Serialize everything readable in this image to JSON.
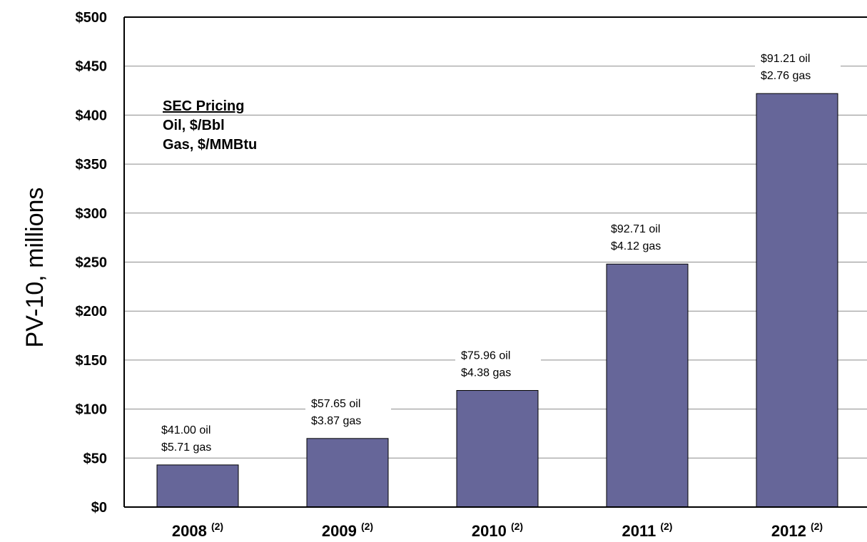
{
  "chart_data": {
    "type": "bar",
    "categories": [
      "2008",
      "2009",
      "2010",
      "2011",
      "2012"
    ],
    "category_notes": [
      "(2)",
      "(2)",
      "(2)",
      "(2)",
      "(2)"
    ],
    "values": [
      43,
      70,
      119,
      248,
      422
    ],
    "ylabel": "PV-10, millions",
    "ylim": [
      0,
      500
    ],
    "yticks": [
      0,
      50,
      100,
      150,
      200,
      250,
      300,
      350,
      400,
      450,
      500
    ],
    "ytick_labels": [
      "$0",
      "$50",
      "$100",
      "$150",
      "$200",
      "$250",
      "$300",
      "$350",
      "$400",
      "$450",
      "$500"
    ],
    "grid": true,
    "bar_color": "#666699",
    "data_labels": [
      [
        "$41.00 oil",
        "$5.71  gas"
      ],
      [
        "$57.65 oil",
        "$3.87  gas"
      ],
      [
        "$75.96 oil",
        "$4.38  gas"
      ],
      [
        "$92.71 oil",
        "$4.12  gas"
      ],
      [
        "$91.21 oil",
        "$2.76  gas"
      ]
    ],
    "annotation": {
      "title": "SEC Pricing",
      "lines": [
        "Oil, $/Bbl",
        "Gas, $/MMBtu"
      ]
    }
  }
}
